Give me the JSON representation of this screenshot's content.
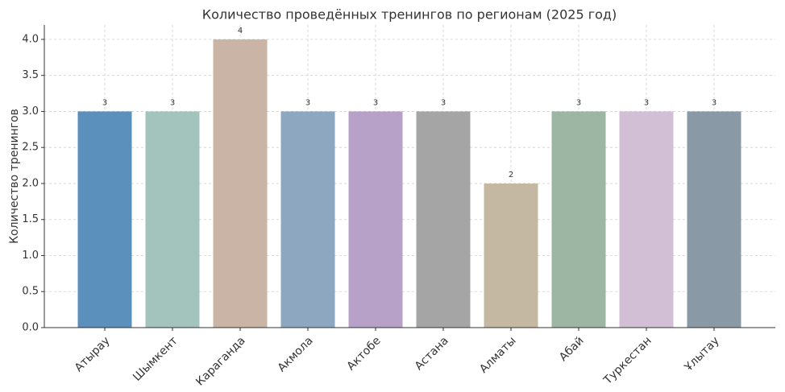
{
  "chart_data": {
    "type": "bar",
    "title": "Количество проведённых тренингов по регионам (2025 год)",
    "y_label": "Количество тренингов",
    "categories": [
      "Атырау",
      "Шымкент",
      "Караганда",
      "Акмола",
      "Актобе",
      "Астана",
      "Алматы",
      "Абай",
      "Туркестан",
      "Ұлытау"
    ],
    "values": [
      3,
      3,
      4,
      3,
      3,
      3,
      2,
      3,
      3,
      3
    ],
    "colors": [
      "#5b8fbc",
      "#a3c4bc",
      "#c9b4a5",
      "#8ca7bf",
      "#b7a1c9",
      "#a5a5a5",
      "#c4b8a3",
      "#9db5a3",
      "#d2bfd6",
      "#8a99a6"
    ],
    "ylim": [
      0,
      4.2
    ],
    "yticks": [
      {
        "value": 0,
        "label": "0.0"
      },
      {
        "value": 0.5,
        "label": "0.5"
      },
      {
        "value": 1,
        "label": "1.0"
      },
      {
        "value": 1.5,
        "label": "1.5"
      },
      {
        "value": 2,
        "label": "2.0"
      },
      {
        "value": 2.5,
        "label": "2.5"
      },
      {
        "value": 3,
        "label": "3.0"
      },
      {
        "value": 3.5,
        "label": "3.5"
      },
      {
        "value": 4,
        "label": "4.0"
      }
    ],
    "grid": true
  }
}
